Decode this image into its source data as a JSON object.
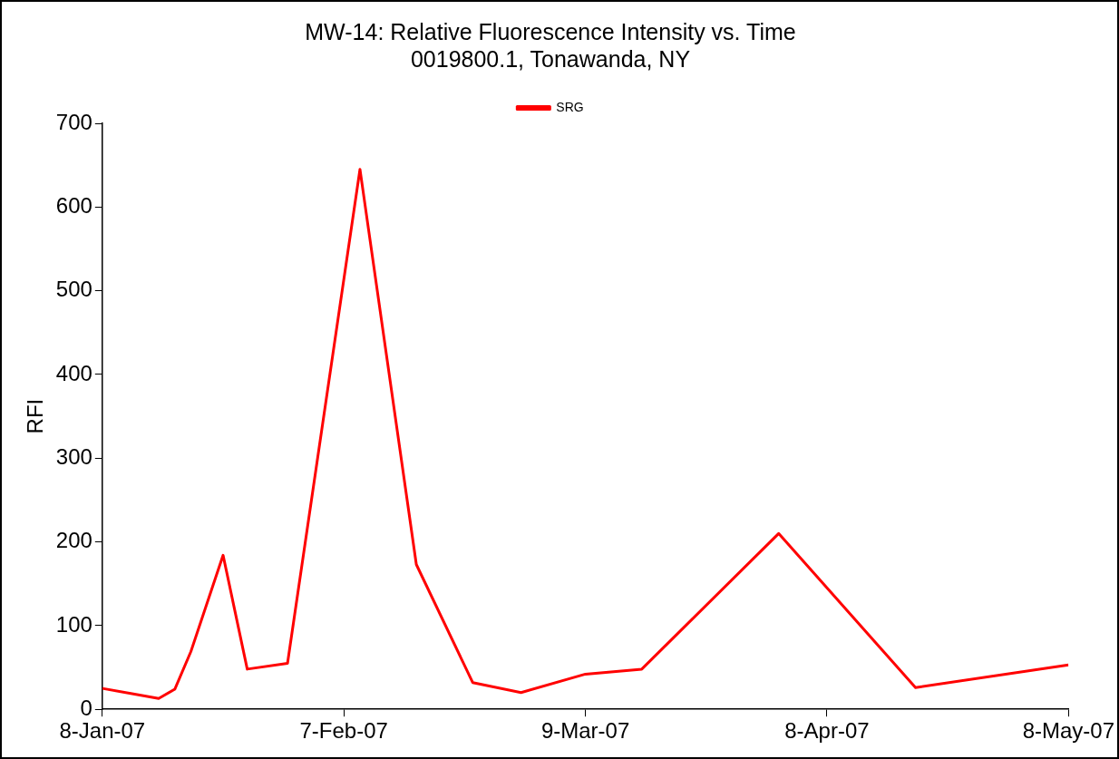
{
  "chart_data": {
    "type": "line",
    "title": "MW-14: Relative Fluorescence Intensity vs. Time",
    "subtitle": "0019800.1, Tonawanda, NY",
    "ylabel": "RFI",
    "x": [
      "2007-01-08",
      "2007-01-15",
      "2007-01-17",
      "2007-01-19",
      "2007-01-23",
      "2007-01-26",
      "2007-01-31",
      "2007-02-09",
      "2007-02-16",
      "2007-02-23",
      "2007-03-01",
      "2007-03-09",
      "2007-03-16",
      "2007-04-02",
      "2007-04-19",
      "2007-05-08"
    ],
    "series": [
      {
        "name": "SRG",
        "color": "#ff0000",
        "values": [
          25,
          13,
          24,
          69,
          184,
          48,
          55,
          645,
          173,
          32,
          20,
          42,
          48,
          210,
          26,
          53
        ]
      }
    ],
    "xlim": [
      "2007-01-08",
      "2007-05-08"
    ],
    "xticks": [
      {
        "value": "2007-01-08",
        "label": "8-Jan-07"
      },
      {
        "value": "2007-02-07",
        "label": "7-Feb-07"
      },
      {
        "value": "2007-03-09",
        "label": "9-Mar-07"
      },
      {
        "value": "2007-04-08",
        "label": "8-Apr-07"
      },
      {
        "value": "2007-05-08",
        "label": "8-May-07"
      }
    ],
    "ylim": [
      0,
      700
    ],
    "yticks": [
      0,
      100,
      200,
      300,
      400,
      500,
      600,
      700
    ],
    "grid": false,
    "legend": "top",
    "marker": "none",
    "line_style": "solid"
  }
}
